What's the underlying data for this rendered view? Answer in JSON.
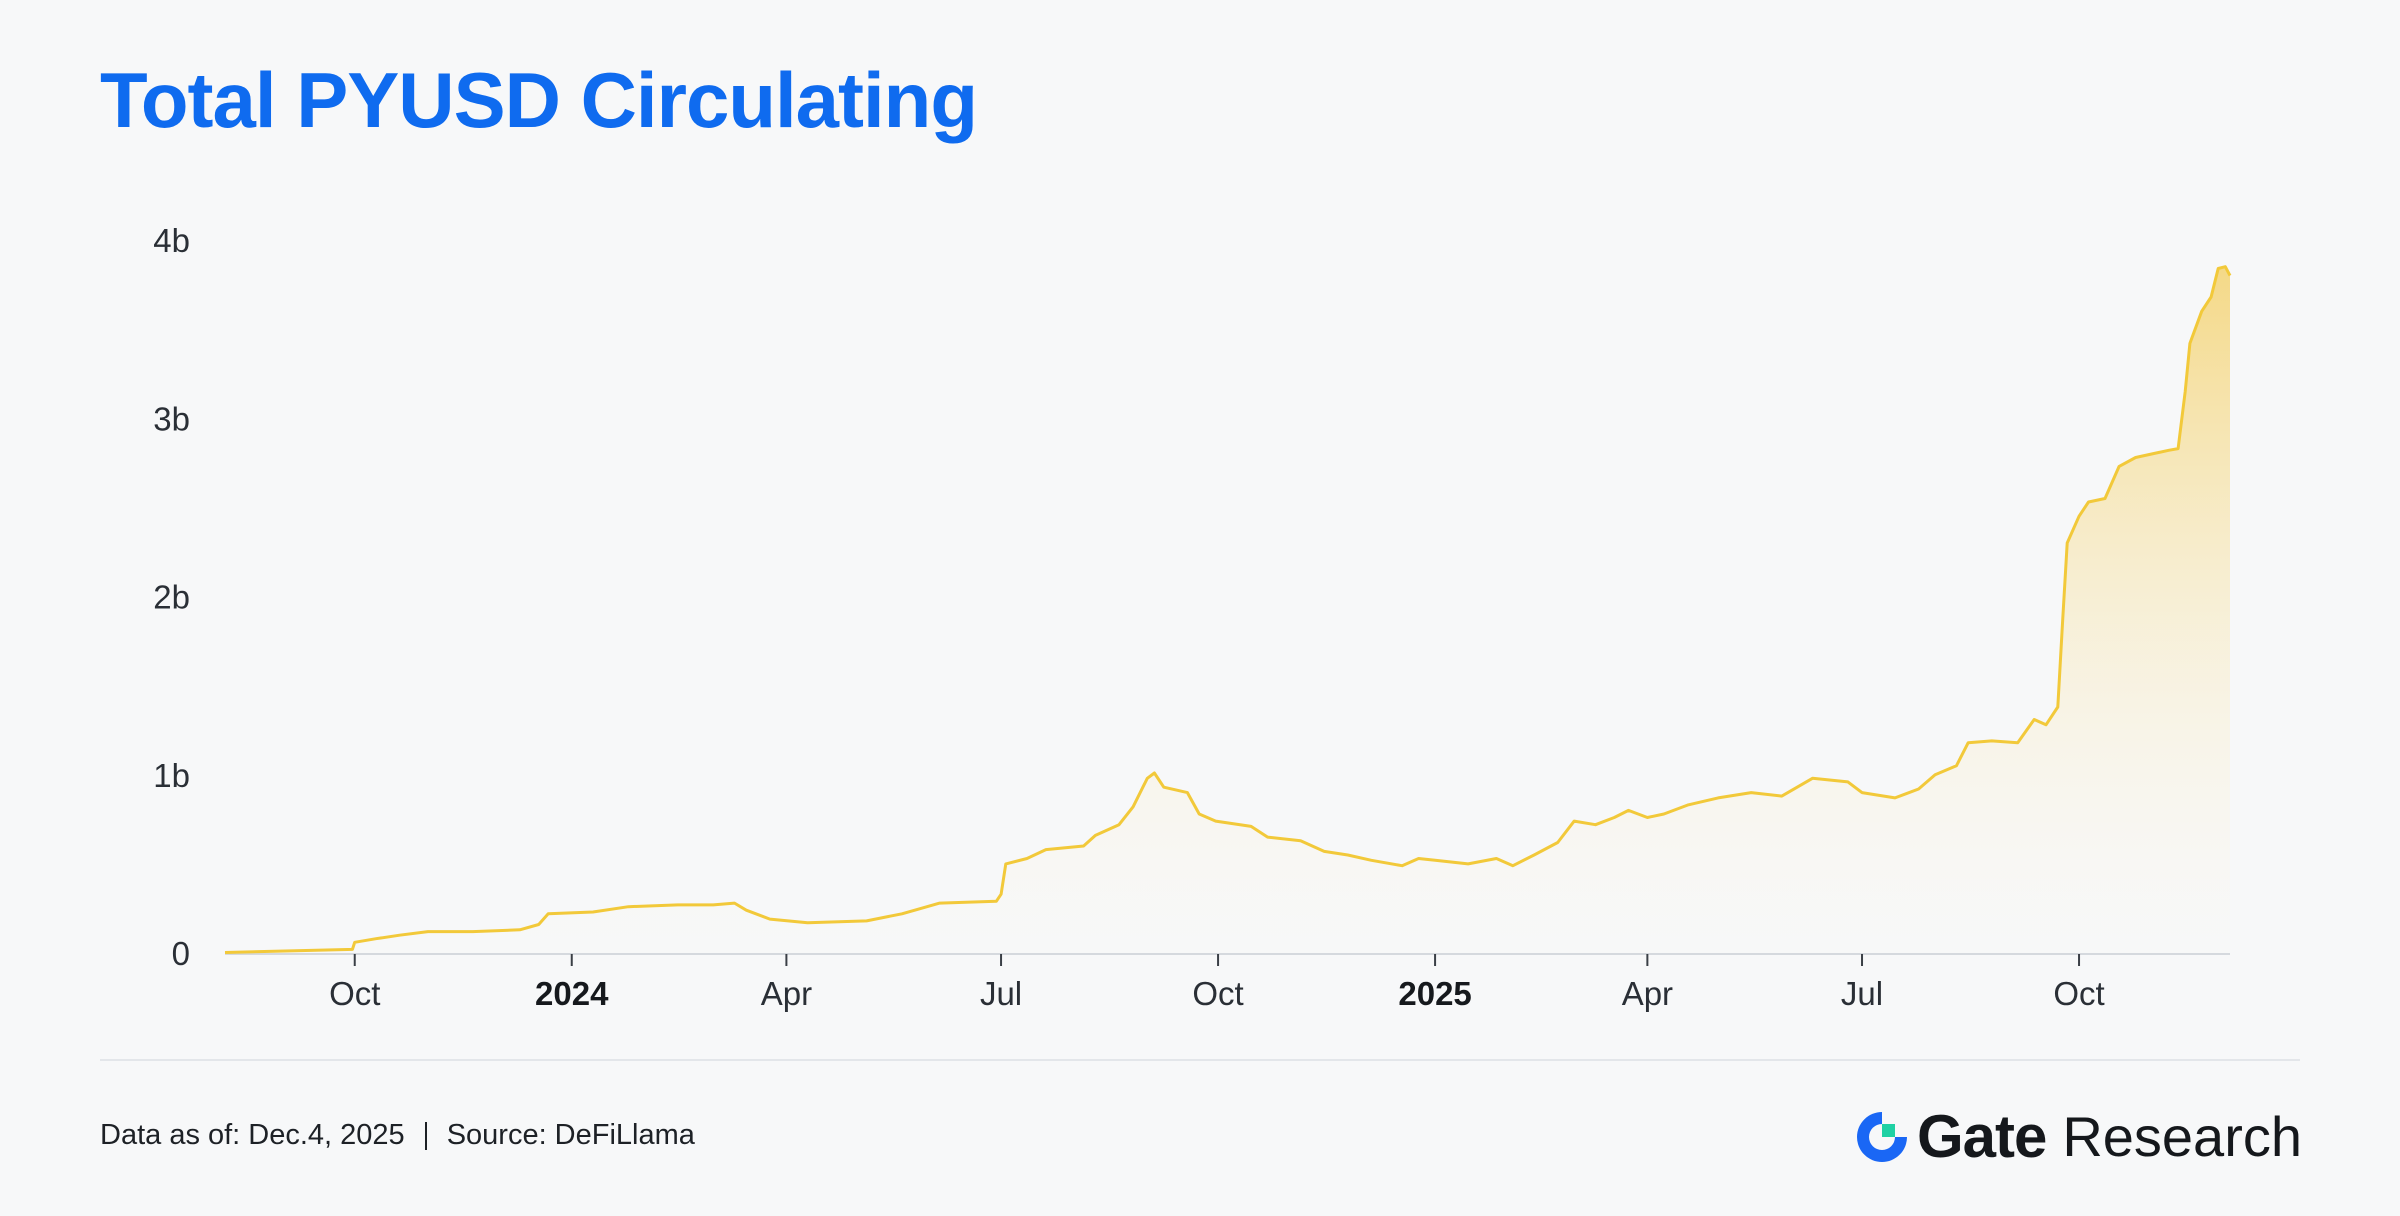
{
  "title": "Total PYUSD Circulating",
  "footer": {
    "data_as_of": "Data as of: Dec.4, 2025",
    "source": "Source: DeFiLlama"
  },
  "brand": {
    "name": "Gate",
    "suffix": "Research",
    "logo_icon": "gate-logo-icon",
    "colors": {
      "logo_blue": "#1a67f5",
      "logo_green": "#1fd1a4"
    }
  },
  "colors": {
    "title": "#0f6bef",
    "line": "#f2c93a",
    "area_top": "#f4d57a",
    "area_bottom": "#fbf6e6",
    "background": "#f7f8f9"
  },
  "chart_data": {
    "type": "area",
    "title": "Total PYUSD Circulating",
    "xlabel": "",
    "ylabel": "",
    "ylim": [
      0,
      4000000000
    ],
    "yticks": [
      {
        "value": 0,
        "label": "0"
      },
      {
        "value": 1000000000,
        "label": "1b"
      },
      {
        "value": 2000000000,
        "label": "2b"
      },
      {
        "value": 3000000000,
        "label": "3b"
      },
      {
        "value": 4000000000,
        "label": "4b"
      }
    ],
    "xlim": [
      "2023-08-07",
      "2025-12-04"
    ],
    "xticks": [
      {
        "date": "2023-10-01",
        "label": "Oct",
        "bold": false
      },
      {
        "date": "2024-01-01",
        "label": "2024",
        "bold": true
      },
      {
        "date": "2024-04-01",
        "label": "Apr",
        "bold": false
      },
      {
        "date": "2024-07-01",
        "label": "Jul",
        "bold": false
      },
      {
        "date": "2024-10-01",
        "label": "Oct",
        "bold": false
      },
      {
        "date": "2025-01-01",
        "label": "2025",
        "bold": true
      },
      {
        "date": "2025-04-01",
        "label": "Apr",
        "bold": false
      },
      {
        "date": "2025-07-01",
        "label": "Jul",
        "bold": false
      },
      {
        "date": "2025-10-01",
        "label": "Oct",
        "bold": false
      }
    ],
    "grid": false,
    "legend": "none",
    "series": [
      {
        "points": [
          [
            "2023-08-07",
            0.003
          ],
          [
            "2023-09-30",
            0.02
          ],
          [
            "2023-10-01",
            0.06
          ],
          [
            "2023-10-10",
            0.08
          ],
          [
            "2023-10-20",
            0.1
          ],
          [
            "2023-11-01",
            0.12
          ],
          [
            "2023-11-20",
            0.12
          ],
          [
            "2023-12-10",
            0.13
          ],
          [
            "2023-12-18",
            0.16
          ],
          [
            "2023-12-22",
            0.22
          ],
          [
            "2024-01-10",
            0.23
          ],
          [
            "2024-01-25",
            0.26
          ],
          [
            "2024-02-15",
            0.27
          ],
          [
            "2024-03-01",
            0.27
          ],
          [
            "2024-03-10",
            0.28
          ],
          [
            "2024-03-15",
            0.24
          ],
          [
            "2024-03-25",
            0.19
          ],
          [
            "2024-04-10",
            0.17
          ],
          [
            "2024-05-05",
            0.18
          ],
          [
            "2024-05-20",
            0.22
          ],
          [
            "2024-05-28",
            0.25
          ],
          [
            "2024-06-05",
            0.28
          ],
          [
            "2024-06-29",
            0.29
          ],
          [
            "2024-07-01",
            0.33
          ],
          [
            "2024-07-03",
            0.5
          ],
          [
            "2024-07-12",
            0.53
          ],
          [
            "2024-07-20",
            0.58
          ],
          [
            "2024-08-05",
            0.6
          ],
          [
            "2024-08-10",
            0.66
          ],
          [
            "2024-08-20",
            0.72
          ],
          [
            "2024-08-26",
            0.82
          ],
          [
            "2024-09-01",
            0.98
          ],
          [
            "2024-09-04",
            1.01
          ],
          [
            "2024-09-08",
            0.93
          ],
          [
            "2024-09-18",
            0.9
          ],
          [
            "2024-09-23",
            0.78
          ],
          [
            "2024-09-30",
            0.74
          ],
          [
            "2024-10-15",
            0.71
          ],
          [
            "2024-10-22",
            0.65
          ],
          [
            "2024-11-05",
            0.63
          ],
          [
            "2024-11-15",
            0.57
          ],
          [
            "2024-11-25",
            0.55
          ],
          [
            "2024-12-05",
            0.52
          ],
          [
            "2024-12-18",
            0.49
          ],
          [
            "2024-12-25",
            0.53
          ],
          [
            "2025-01-01",
            0.52
          ],
          [
            "2025-01-15",
            0.5
          ],
          [
            "2025-01-27",
            0.53
          ],
          [
            "2025-02-03",
            0.49
          ],
          [
            "2025-02-12",
            0.55
          ],
          [
            "2025-02-22",
            0.62
          ],
          [
            "2025-03-01",
            0.74
          ],
          [
            "2025-03-10",
            0.72
          ],
          [
            "2025-03-18",
            0.76
          ],
          [
            "2025-03-24",
            0.8
          ],
          [
            "2025-04-01",
            0.76
          ],
          [
            "2025-04-08",
            0.78
          ],
          [
            "2025-04-18",
            0.83
          ],
          [
            "2025-05-01",
            0.87
          ],
          [
            "2025-05-15",
            0.9
          ],
          [
            "2025-05-28",
            0.88
          ],
          [
            "2025-06-10",
            0.98
          ],
          [
            "2025-06-25",
            0.96
          ],
          [
            "2025-07-01",
            0.9
          ],
          [
            "2025-07-15",
            0.87
          ],
          [
            "2025-07-25",
            0.92
          ],
          [
            "2025-08-01",
            1.0
          ],
          [
            "2025-08-10",
            1.05
          ],
          [
            "2025-08-15",
            1.18
          ],
          [
            "2025-08-25",
            1.19
          ],
          [
            "2025-09-05",
            1.18
          ],
          [
            "2025-09-12",
            1.31
          ],
          [
            "2025-09-17",
            1.28
          ],
          [
            "2025-09-22",
            1.38
          ],
          [
            "2025-09-24",
            1.85
          ],
          [
            "2025-09-26",
            2.3
          ],
          [
            "2025-10-01",
            2.45
          ],
          [
            "2025-10-05",
            2.53
          ],
          [
            "2025-10-12",
            2.55
          ],
          [
            "2025-10-18",
            2.73
          ],
          [
            "2025-10-25",
            2.78
          ],
          [
            "2025-11-01",
            2.8
          ],
          [
            "2025-11-08",
            2.82
          ],
          [
            "2025-11-12",
            2.83
          ],
          [
            "2025-11-15",
            3.15
          ],
          [
            "2025-11-17",
            3.42
          ],
          [
            "2025-11-22",
            3.6
          ],
          [
            "2025-11-26",
            3.68
          ],
          [
            "2025-11-29",
            3.84
          ],
          [
            "2025-12-02",
            3.85
          ],
          [
            "2025-12-04",
            3.8
          ]
        ],
        "value_unit": "b"
      }
    ]
  }
}
